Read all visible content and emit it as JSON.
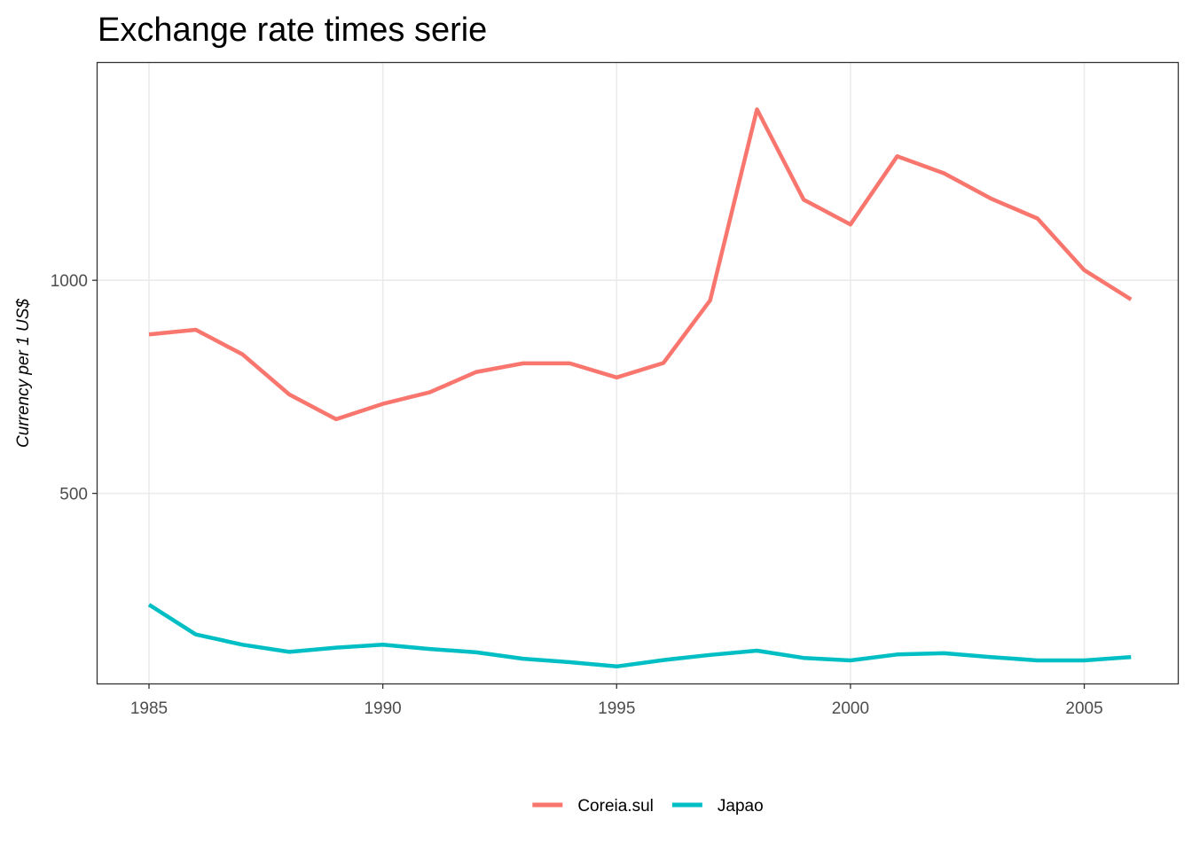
{
  "chart_data": {
    "type": "line",
    "title": "Exchange rate times serie",
    "xlabel": "",
    "ylabel": "Currency per 1 US$",
    "x": [
      1985,
      1986,
      1987,
      1988,
      1989,
      1990,
      1991,
      1992,
      1993,
      1994,
      1995,
      1996,
      1997,
      1998,
      1999,
      2000,
      2001,
      2002,
      2003,
      2004,
      2005,
      2006
    ],
    "xlim": [
      1983.9,
      2007.0
    ],
    "ylim": [
      54,
      1510
    ],
    "x_ticks": [
      1985,
      1990,
      1995,
      2000,
      2005
    ],
    "x_tick_labels": [
      "1985",
      "1990",
      "1995",
      "2000",
      "2005"
    ],
    "y_ticks": [
      500,
      1000
    ],
    "y_tick_labels": [
      "500",
      "1000"
    ],
    "grid": true,
    "legend_position": "bottom",
    "series": [
      {
        "name": "Coreia.sul",
        "color": "#F8766D",
        "values": [
          873,
          884,
          826,
          732,
          674,
          710,
          737,
          785,
          805,
          805,
          772,
          806,
          953,
          1401,
          1189,
          1131,
          1291,
          1251,
          1192,
          1145,
          1024,
          955
        ]
      },
      {
        "name": "Japao",
        "color": "#00BFC4",
        "values": [
          239,
          169,
          145,
          128,
          138,
          145,
          135,
          127,
          112,
          104,
          94,
          109,
          121,
          131,
          114,
          108,
          122,
          125,
          116,
          108,
          108,
          116
        ]
      }
    ]
  }
}
